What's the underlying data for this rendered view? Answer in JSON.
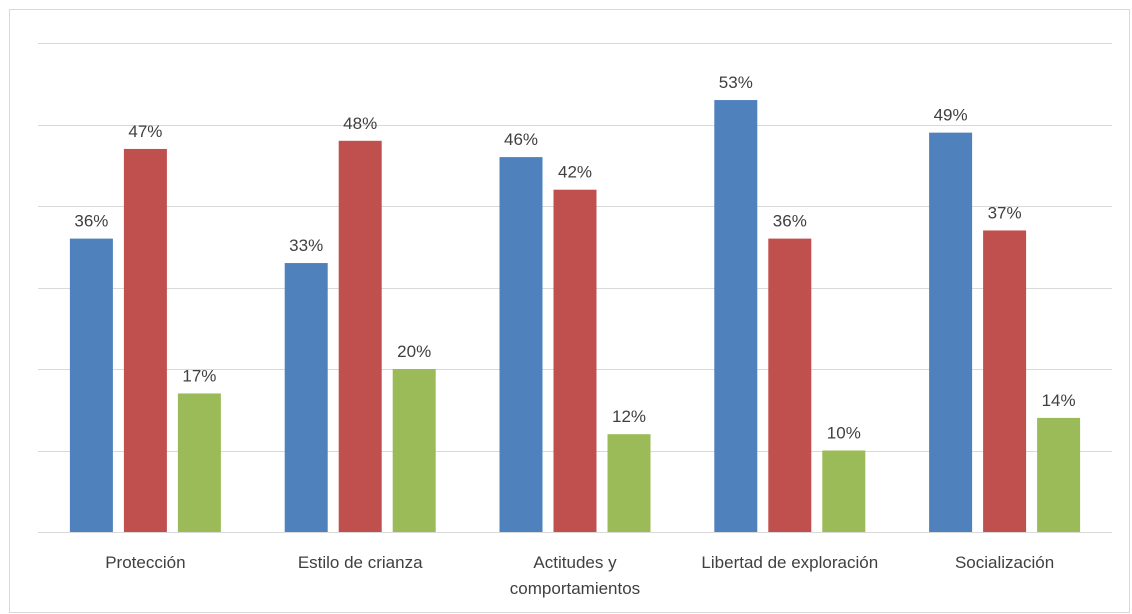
{
  "chart_data": {
    "type": "bar",
    "categories": [
      "Protección",
      "Estilo de crianza",
      "Actitudes y comportamientos",
      "Libertad de exploración",
      "Socialización"
    ],
    "series": [
      {
        "color": "#4f81bd",
        "values": [
          36,
          33,
          46,
          53,
          49
        ],
        "value_labels": [
          "36%",
          "33%",
          "46%",
          "53%",
          "49%"
        ]
      },
      {
        "color": "#c0504d",
        "values": [
          47,
          48,
          42,
          36,
          37
        ],
        "value_labels": [
          "47%",
          "48%",
          "42%",
          "36%",
          "37%"
        ]
      },
      {
        "color": "#9bbb59",
        "values": [
          17,
          20,
          12,
          10,
          14
        ],
        "value_labels": [
          "17%",
          "20%",
          "12%",
          "10%",
          "14%"
        ]
      }
    ],
    "ylim": [
      0,
      60
    ],
    "yticks": [
      0,
      10,
      20,
      30,
      40,
      50,
      60
    ],
    "grid": true
  }
}
